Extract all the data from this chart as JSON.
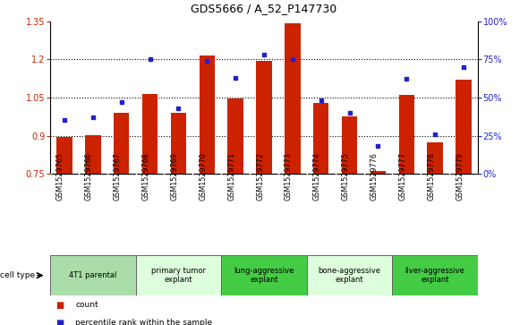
{
  "title": "GDS5666 / A_52_P147730",
  "samples": [
    "GSM1529765",
    "GSM1529766",
    "GSM1529767",
    "GSM1529768",
    "GSM1529769",
    "GSM1529770",
    "GSM1529771",
    "GSM1529772",
    "GSM1529773",
    "GSM1529774",
    "GSM1529775",
    "GSM1529776",
    "GSM1529777",
    "GSM1529778",
    "GSM1529779"
  ],
  "count_values": [
    0.895,
    0.902,
    0.99,
    1.065,
    0.99,
    1.215,
    1.047,
    1.195,
    1.34,
    1.03,
    0.975,
    0.76,
    1.06,
    0.875,
    1.12
  ],
  "percentile_values": [
    35,
    37,
    47,
    75,
    43,
    74,
    63,
    78,
    75,
    48,
    40,
    18,
    62,
    26,
    70
  ],
  "bar_color": "#cc2200",
  "dot_color": "#2222cc",
  "ylim_left": [
    0.75,
    1.35
  ],
  "ylim_right": [
    0,
    100
  ],
  "yticks_left": [
    0.75,
    0.9,
    1.05,
    1.2,
    1.35
  ],
  "ytick_labels_right": [
    "0%",
    "25%",
    "50%",
    "75%",
    "100%"
  ],
  "hline_vals": [
    0.9,
    1.05,
    1.2
  ],
  "bar_width": 0.55,
  "groups": [
    {
      "label": "4T1 parental",
      "start": 0,
      "end": 2,
      "color": "#aaddaa"
    },
    {
      "label": "primary tumor\nexplant",
      "start": 3,
      "end": 5,
      "color": "#ddffdd"
    },
    {
      "label": "lung-aggressive\nexplant",
      "start": 6,
      "end": 8,
      "color": "#44cc44"
    },
    {
      "label": "bone-aggressive\nexplant",
      "start": 9,
      "end": 11,
      "color": "#ddffdd"
    },
    {
      "label": "liver-aggressive\nexplant",
      "start": 12,
      "end": 14,
      "color": "#44cc44"
    }
  ],
  "sample_bg_color": "#cccccc",
  "sample_divider_color": "#ffffff",
  "plot_bg": "#ffffff"
}
